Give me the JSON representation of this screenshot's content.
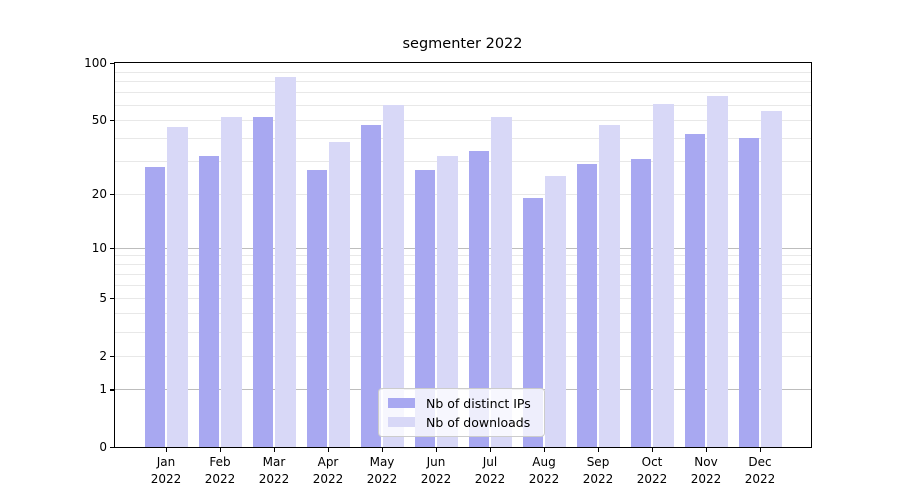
{
  "chart_data": {
    "type": "bar",
    "title": "segmenter 2022",
    "categories": [
      "Jan",
      "Feb",
      "Mar",
      "Apr",
      "May",
      "Jun",
      "Jul",
      "Aug",
      "Sep",
      "Oct",
      "Nov",
      "Dec"
    ],
    "year_label": "2022",
    "series": [
      {
        "name": "Nb of distinct IPs",
        "color": "#a8a8f1",
        "values": [
          28,
          32,
          52,
          27,
          47,
          27,
          34,
          19,
          29,
          31,
          42,
          40
        ]
      },
      {
        "name": "Nb of downloads",
        "color": "#d8d8f7",
        "values": [
          46,
          52,
          84,
          38,
          60,
          32,
          52,
          25,
          47,
          61,
          67,
          56
        ]
      }
    ],
    "yscale": "log1p",
    "ylim": [
      0,
      100
    ],
    "yticks": [
      100,
      50,
      20,
      10,
      5,
      2,
      1,
      0
    ],
    "grid": {
      "major_values": [
        1,
        10
      ],
      "minor_values": [
        2,
        3,
        4,
        5,
        6,
        7,
        8,
        9,
        20,
        30,
        40,
        50,
        60,
        70,
        80,
        90
      ]
    },
    "legend_position": "lower center",
    "colors": {
      "spine": "#000000",
      "text": "#000000",
      "grid_minor": "#e8e8e8",
      "grid_major": "#bdbdbd"
    }
  }
}
